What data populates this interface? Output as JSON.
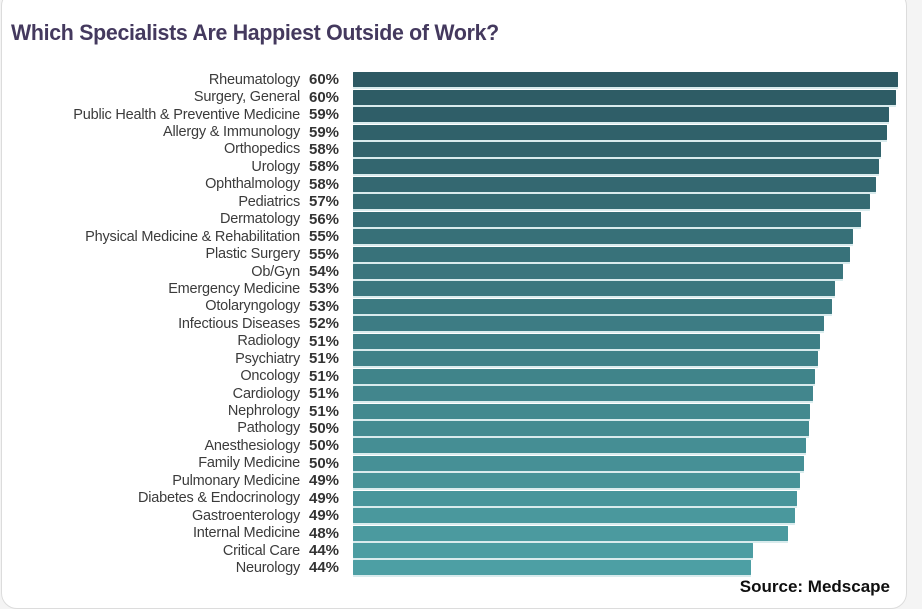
{
  "title": "Which Specialists Are Happiest Outside of Work?",
  "source": "Source: Medscape",
  "colors": {
    "title": "#44395e",
    "label": "#3b3b3b",
    "value": "#333333",
    "bar_top": "#2d5963",
    "bar_bottom": "#4d9fa4",
    "card_border": "#dcdcdc",
    "source_text": "#0f0f0f"
  },
  "chart_data": {
    "type": "bar",
    "orientation": "horizontal",
    "title": "Which Specialists Are Happiest Outside of Work?",
    "source": "Source: Medscape",
    "value_format": "percent",
    "xlim": [
      0,
      60
    ],
    "grid": false,
    "legend": false,
    "categories": [
      "Rheumatology",
      "Surgery, General",
      "Public Health & Preventive Medicine",
      "Allergy & Immunology",
      "Orthopedics",
      "Urology",
      "Ophthalmology",
      "Pediatrics",
      "Dermatology",
      "Physical Medicine & Rehabilitation",
      "Plastic Surgery",
      "Ob/Gyn",
      "Emergency Medicine",
      "Otolaryngology",
      "Infectious Diseases",
      "Radiology",
      "Psychiatry",
      "Oncology",
      "Cardiology",
      "Nephrology",
      "Pathology",
      "Anesthesiology",
      "Family Medicine",
      "Pulmonary Medicine",
      "Diabetes & Endocrinology",
      "Gastroenterology",
      "Internal Medicine",
      "Critical Care",
      "Neurology"
    ],
    "values": [
      60,
      60,
      59,
      59,
      58,
      58,
      58,
      57,
      56,
      55,
      55,
      54,
      53,
      53,
      52,
      51,
      51,
      51,
      51,
      51,
      50,
      50,
      50,
      49,
      49,
      49,
      48,
      44,
      44
    ]
  }
}
